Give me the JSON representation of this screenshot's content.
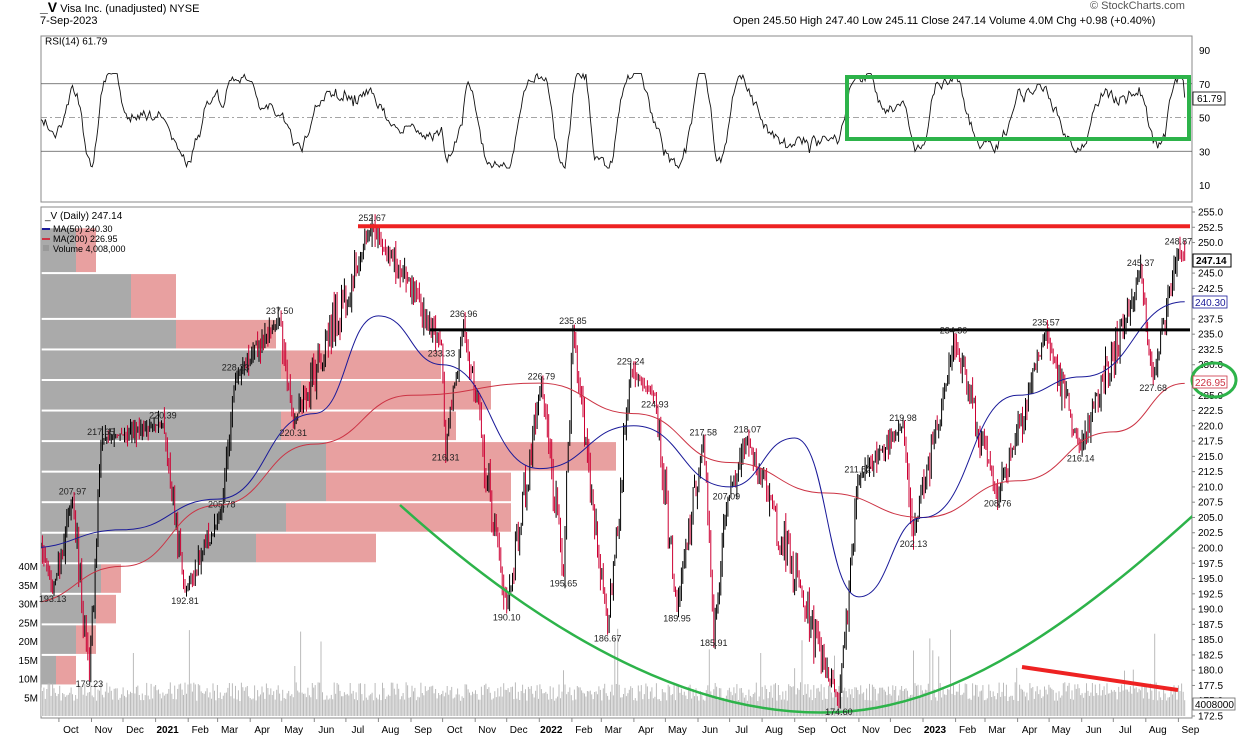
{
  "header": {
    "symbol": "_V",
    "name": "Visa Inc. (unadjusted)",
    "exchange": "NYSE",
    "date": "7-Sep-2023",
    "ohlc": "Open 245.50  High 247.40  Low 245.11  Close 247.14  Volume 4.0M  Chg +0.98 (+0.40%)",
    "watermark": "© StockCharts.com"
  },
  "rsi_panel": {
    "label": "RSI(14) 61.79",
    "current_label": "61.79",
    "current": 61.79,
    "ticks": [
      "90",
      "70",
      "50",
      "30",
      "10"
    ],
    "tick_values": [
      90,
      70,
      50,
      30,
      10
    ],
    "range": [
      0,
      100
    ],
    "levels": [
      70,
      50,
      30
    ],
    "box_color": "#2db34a"
  },
  "price_panel": {
    "legend": {
      "main": "_V (Daily) 247.14",
      "ma50": "MA(50) 240.30",
      "ma200": "MA(200) 226.95",
      "volume": "Volume 4,008,000"
    },
    "colors": {
      "up": "#000000",
      "down": "#cc0033",
      "ma50": "#1a1a99",
      "ma200": "#cc3344",
      "resistance": "#ee2222",
      "support": "#000000",
      "cup": "#2db34a",
      "volume_trend": "#ee2222",
      "volume_bar": "#bbbbbb",
      "vbp_up": "#aaaaaa",
      "vbp_down": "#e8a0a0"
    },
    "right_ticks": [
      "255.0",
      "252.5",
      "250.0",
      "247.5",
      "245.0",
      "242.5",
      "240.0",
      "237.5",
      "235.0",
      "232.5",
      "230.0",
      "227.5",
      "225.0",
      "222.5",
      "220.0",
      "217.5",
      "215.0",
      "212.5",
      "210.0",
      "207.5",
      "205.0",
      "202.5",
      "200.0",
      "197.5",
      "195.0",
      "192.5",
      "190.0",
      "187.5",
      "185.0",
      "182.5",
      "180.0",
      "177.5",
      "175.0",
      "172.5"
    ],
    "right_tick_values": [
      255.0,
      252.5,
      250.0,
      247.5,
      245.0,
      242.5,
      240.0,
      237.5,
      235.0,
      232.5,
      230.0,
      227.5,
      225.0,
      222.5,
      220.0,
      217.5,
      215.0,
      212.5,
      210.0,
      207.5,
      205.0,
      202.5,
      200.0,
      197.5,
      195.0,
      192.5,
      190.0,
      187.5,
      185.0,
      182.5,
      180.0,
      177.5,
      175.0,
      172.5
    ],
    "current_price_label": "247.14",
    "ma50_label": "240.30",
    "ma200_label": "226.95",
    "volume_label": "4008000",
    "volume_ticks": [
      "40M",
      "35M",
      "30M",
      "25M",
      "20M",
      "15M",
      "10M",
      "5M"
    ],
    "volume_tick_values": [
      40,
      35,
      30,
      25,
      20,
      15,
      10,
      5
    ],
    "x_labels": [
      "Oct",
      "Nov",
      "Dec",
      "2021",
      "Feb",
      "Mar",
      "Apr",
      "May",
      "Jun",
      "Jul",
      "Aug",
      "Sep",
      "Oct",
      "Nov",
      "Dec",
      "2022",
      "Feb",
      "Mar",
      "Apr",
      "May",
      "Jun",
      "Jul",
      "Aug",
      "Sep",
      "Oct",
      "Nov",
      "Dec",
      "2023",
      "Feb",
      "Mar",
      "Apr",
      "May",
      "Jun",
      "Jul",
      "Aug",
      "Sep"
    ],
    "x_label_bold": [
      "2021",
      "2022",
      "2023"
    ],
    "price_range": [
      172.5,
      255.0
    ],
    "resistance_level": 252.67,
    "support_level": 235.7
  },
  "chart_data": {
    "type": "line",
    "title": "_V Visa Inc. (unadjusted) NYSE",
    "ylabel": "",
    "xlabel": "",
    "ylim": [
      172.5,
      255.0
    ],
    "annotations": [
      {
        "label": "193.13",
        "x": "2020-09-25",
        "y": 193.13
      },
      {
        "label": "207.97",
        "x": "2020-10-14",
        "y": 207.97
      },
      {
        "label": "179.23",
        "x": "2020-10-30",
        "y": 179.23
      },
      {
        "label": "217.65",
        "x": "2020-11-10",
        "y": 217.65
      },
      {
        "label": "220.39",
        "x": "2021-01-08",
        "y": 220.39
      },
      {
        "label": "192.81",
        "x": "2021-01-29",
        "y": 192.81
      },
      {
        "label": "205.78",
        "x": "2021-03-05",
        "y": 205.78
      },
      {
        "label": "228.23",
        "x": "2021-03-18",
        "y": 228.23
      },
      {
        "label": "237.50",
        "x": "2021-04-29",
        "y": 237.5
      },
      {
        "label": "220.31",
        "x": "2021-05-12",
        "y": 220.31
      },
      {
        "label": "252.67",
        "x": "2021-07-26",
        "y": 252.67
      },
      {
        "label": "233.33",
        "x": "2021-09-30",
        "y": 233.33
      },
      {
        "label": "216.31",
        "x": "2021-10-04",
        "y": 216.31
      },
      {
        "label": "236.96",
        "x": "2021-10-21",
        "y": 236.96
      },
      {
        "label": "190.10",
        "x": "2021-12-01",
        "y": 190.1
      },
      {
        "label": "226.79",
        "x": "2022-01-03",
        "y": 226.79
      },
      {
        "label": "195.65",
        "x": "2022-01-24",
        "y": 195.65
      },
      {
        "label": "235.85",
        "x": "2022-02-02",
        "y": 235.85
      },
      {
        "label": "186.67",
        "x": "2022-03-07",
        "y": 186.67
      },
      {
        "label": "229.24",
        "x": "2022-03-29",
        "y": 229.24
      },
      {
        "label": "224.93",
        "x": "2022-04-21",
        "y": 224.93
      },
      {
        "label": "189.95",
        "x": "2022-05-12",
        "y": 189.95
      },
      {
        "label": "217.58",
        "x": "2022-06-06",
        "y": 217.58
      },
      {
        "label": "185.91",
        "x": "2022-06-16",
        "y": 185.91
      },
      {
        "label": "207.09",
        "x": "2022-06-28",
        "y": 207.09
      },
      {
        "label": "218.07",
        "x": "2022-07-18",
        "y": 218.07
      },
      {
        "label": "174.60",
        "x": "2022-10-13",
        "y": 174.6
      },
      {
        "label": "211.52",
        "x": "2022-10-31",
        "y": 211.52
      },
      {
        "label": "219.98",
        "x": "2022-12-13",
        "y": 219.98
      },
      {
        "label": "202.13",
        "x": "2022-12-23",
        "y": 202.13
      },
      {
        "label": "234.30",
        "x": "2023-01-30",
        "y": 234.3
      },
      {
        "label": "208.76",
        "x": "2023-03-13",
        "y": 208.76
      },
      {
        "label": "235.57",
        "x": "2023-04-28",
        "y": 235.57
      },
      {
        "label": "216.14",
        "x": "2023-05-31",
        "y": 216.14
      },
      {
        "label": "245.37",
        "x": "2023-07-27",
        "y": 245.37
      },
      {
        "label": "227.68",
        "x": "2023-08-08",
        "y": 227.68
      },
      {
        "label": "248.87",
        "x": "2023-09-01",
        "y": 248.87
      }
    ],
    "series": [
      {
        "name": "_V (Daily)",
        "x": [
          "2020-09-25",
          "2020-10-14",
          "2020-10-30",
          "2020-11-10",
          "2021-01-08",
          "2021-01-29",
          "2021-03-05",
          "2021-03-18",
          "2021-04-29",
          "2021-05-12",
          "2021-07-26",
          "2021-09-30",
          "2021-10-04",
          "2021-10-21",
          "2021-12-01",
          "2022-01-03",
          "2022-01-24",
          "2022-02-02",
          "2022-03-07",
          "2022-03-29",
          "2022-04-21",
          "2022-05-12",
          "2022-06-06",
          "2022-06-16",
          "2022-06-28",
          "2022-07-18",
          "2022-10-13",
          "2022-10-31",
          "2022-12-13",
          "2022-12-23",
          "2023-01-30",
          "2023-03-13",
          "2023-04-28",
          "2023-05-31",
          "2023-07-27",
          "2023-08-08",
          "2023-09-01",
          "2023-09-07"
        ],
        "values": [
          193.13,
          207.97,
          179.23,
          217.65,
          220.39,
          192.81,
          205.78,
          228.23,
          237.5,
          220.31,
          252.67,
          233.33,
          216.31,
          236.96,
          190.1,
          226.79,
          195.65,
          235.85,
          186.67,
          229.24,
          224.93,
          189.95,
          217.58,
          185.91,
          207.09,
          218.07,
          174.6,
          211.52,
          219.98,
          202.13,
          234.3,
          208.76,
          235.57,
          216.14,
          245.37,
          227.68,
          248.87,
          247.14
        ]
      },
      {
        "name": "MA(50)",
        "x": [
          "2020-09-01",
          "2020-12-01",
          "2021-03-01",
          "2021-06-01",
          "2021-08-01",
          "2021-10-01",
          "2022-01-01",
          "2022-04-01",
          "2022-07-01",
          "2022-09-01",
          "2022-11-01",
          "2023-01-01",
          "2023-04-01",
          "2023-06-01",
          "2023-09-07"
        ],
        "values": [
          200,
          203,
          208,
          222,
          238,
          230,
          213,
          220,
          210,
          218,
          192,
          205,
          225,
          228,
          240.3
        ]
      },
      {
        "name": "MA(200)",
        "x": [
          "2020-09-01",
          "2020-12-01",
          "2021-03-01",
          "2021-06-01",
          "2021-09-01",
          "2022-01-01",
          "2022-04-01",
          "2022-07-01",
          "2022-10-01",
          "2023-01-01",
          "2023-04-01",
          "2023-07-01",
          "2023-09-07"
        ],
        "values": [
          191,
          197,
          207,
          217,
          225,
          227,
          222,
          214,
          209,
          205,
          211,
          219,
          226.95
        ]
      }
    ]
  }
}
